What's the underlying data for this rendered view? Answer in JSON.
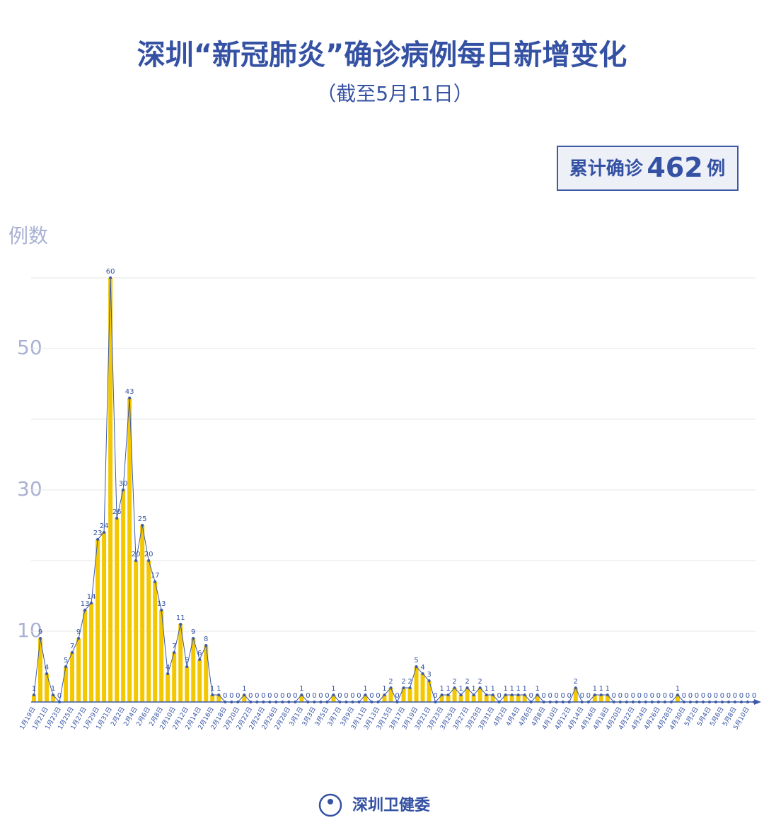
{
  "chart_data": {
    "type": "bar-line",
    "title": "深圳“新冠肺炎”确诊病例每日新增变化",
    "subtitle": "（截至5月11日）",
    "total_prefix": "累计确诊",
    "total": 462,
    "total_suffix": "例",
    "y_label": "例数",
    "source": "深圳卫健委",
    "ylim": [
      0,
      60
    ],
    "yticks": [
      10,
      30,
      50
    ],
    "minor_yticks": [
      20,
      40,
      60
    ],
    "grid": true,
    "bar_color": "#f4c800",
    "line_color": "#3d5aa6",
    "categories": [
      "1月19日",
      null,
      "1月21日",
      null,
      "1月23日",
      null,
      "1月25日",
      null,
      "1月27日",
      null,
      "1月29日",
      null,
      "1月31日",
      null,
      "2月2日",
      null,
      "2月4日",
      null,
      "2月6日",
      null,
      "2月8日",
      null,
      "2月10日",
      null,
      "2月12日",
      null,
      "2月14日",
      null,
      "2月16日",
      null,
      "2月18日",
      null,
      "2月20日",
      null,
      "2月22日",
      null,
      "2月24日",
      null,
      "2月26日",
      null,
      "2月28日",
      null,
      "3月1日",
      null,
      "3月3日",
      null,
      "3月5日",
      null,
      "3月7日",
      null,
      "3月9日",
      null,
      "3月11日",
      null,
      "3月13日",
      null,
      "3月15日",
      null,
      "3月17日",
      null,
      "3月19日",
      null,
      "3月21日",
      null,
      "3月23日",
      null,
      "3月25日",
      null,
      "3月27日",
      null,
      "3月29日",
      null,
      "3月31日",
      null,
      "4月2日",
      null,
      "4月4日",
      null,
      "4月6日",
      null,
      "4月8日",
      null,
      "4月10日",
      null,
      "4月12日",
      null,
      "4月14日",
      null,
      "4月16日",
      null,
      "4月18日",
      null,
      "4月20日",
      null,
      "4月22日",
      null,
      "4月24日",
      null,
      "4月26日",
      null,
      "4月28日",
      null,
      "4月30日",
      null,
      "5月2日",
      null,
      "5月4日",
      null,
      "5月6日",
      null,
      "5月8日",
      null,
      "5月10日",
      null
    ],
    "values": [
      1,
      9,
      4,
      1,
      0,
      5,
      7,
      9,
      13,
      14,
      23,
      24,
      60,
      26,
      30,
      43,
      20,
      25,
      20,
      17,
      13,
      4,
      7,
      11,
      5,
      9,
      6,
      8,
      1,
      1,
      0,
      0,
      0,
      1,
      0,
      0,
      0,
      0,
      0,
      0,
      0,
      0,
      1,
      0,
      0,
      0,
      0,
      1,
      0,
      0,
      0,
      0,
      1,
      0,
      0,
      1,
      2,
      0,
      2,
      2,
      5,
      4,
      3,
      0,
      1,
      1,
      2,
      1,
      2,
      1,
      2,
      1,
      1,
      0,
      1,
      1,
      1,
      1,
      0,
      1,
      0,
      0,
      0,
      0,
      0,
      2,
      0,
      0,
      1,
      1,
      1,
      0,
      0,
      0,
      0,
      0,
      0,
      0,
      0,
      0,
      0,
      1,
      0,
      0,
      0,
      0,
      0,
      0,
      0,
      0,
      0,
      0,
      0,
      0
    ]
  }
}
